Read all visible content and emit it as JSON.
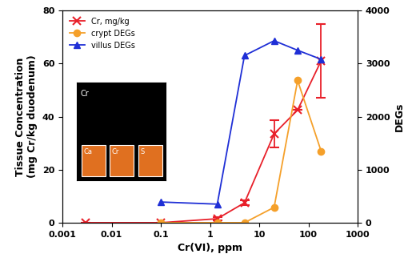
{
  "chart_data": {
    "type": "line",
    "x_label": "Cr(VI), ppm",
    "y_label": "Tissue Concentration\n(mg Cr/kg duodenum)",
    "y2_label": "DEGs",
    "log": "x",
    "legend": "upper left",
    "xlim": [
      0.001,
      1000
    ],
    "xticks": [
      0.001,
      0.01,
      0.1,
      1,
      10,
      100,
      1000
    ],
    "ylim": [
      0,
      80
    ],
    "yticks": [
      0,
      20,
      40,
      60,
      80
    ],
    "y2lim": [
      0,
      4000
    ],
    "y2ticks": [
      0,
      1000,
      2000,
      3000,
      4000
    ],
    "annotations": [
      {
        "text": "Cr"
      },
      {
        "text": "Ca"
      },
      {
        "text": "Cr"
      },
      {
        "text": "S"
      }
    ],
    "series": [
      {
        "name": "Cr, mg/kg",
        "color": "#e8202a",
        "marker": "x",
        "line_style": "solid",
        "x": [
          0.003,
          0.1,
          1.4,
          5,
          20,
          60,
          180
        ],
        "values": [
          0,
          0,
          1.5,
          7.5,
          33.5,
          42.5,
          61
        ],
        "errors": [
          0,
          0,
          0.5,
          1,
          5,
          0,
          14
        ]
      },
      {
        "name": "crypt DEGs",
        "color": "#f5a02a",
        "marker": "o",
        "line_style": "solid",
        "axis": "y2",
        "x": [
          0.1,
          1.4,
          5,
          20,
          60,
          180
        ],
        "values": [
          0,
          0,
          0,
          290,
          2680,
          1350
        ]
      },
      {
        "name": "villus DEGs",
        "color": "#1f2fd6",
        "marker": "^",
        "line_style": "solid",
        "axis": "y2",
        "x": [
          0.1,
          1.4,
          5,
          20,
          60,
          180
        ],
        "values": [
          390,
          350,
          3150,
          3430,
          3250,
          3080
        ]
      }
    ]
  }
}
